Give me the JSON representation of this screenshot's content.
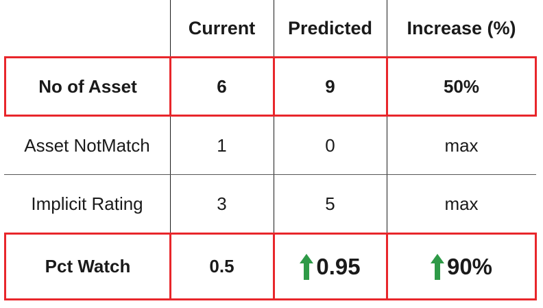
{
  "table": {
    "columns": [
      "",
      "Current",
      "Predicted",
      "Increase (%)"
    ],
    "rows": [
      {
        "label": "No of Asset",
        "current": "6",
        "predicted": "9",
        "increase": "50%",
        "highlighted": true
      },
      {
        "label": "Asset NotMatch",
        "current": "1",
        "predicted": "0",
        "increase": "max",
        "highlighted": false
      },
      {
        "label": "Implicit Rating",
        "current": "3",
        "predicted": "5",
        "increase": "max",
        "highlighted": false
      },
      {
        "label": "Pct Watch",
        "current": "0.5",
        "predicted": "0.95",
        "increase": "90%",
        "highlighted": true,
        "increase_arrows": "up-arrow-icon"
      }
    ]
  },
  "colors": {
    "highlight_border": "#e8262b",
    "arrow": "#2e9a47",
    "text": "#1a1a1a"
  }
}
